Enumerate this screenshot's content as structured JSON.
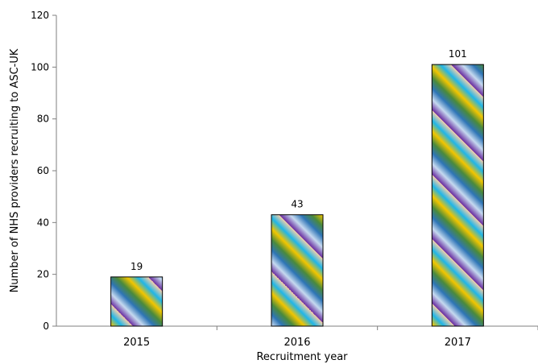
{
  "chart_data": {
    "type": "bar",
    "title": "",
    "xlabel": "Recruitment year",
    "ylabel": "Number of NHS providers recruiting to ASC-UK",
    "categories": [
      "2015",
      "2016",
      "2017"
    ],
    "values": [
      19,
      43,
      101
    ],
    "data_labels": [
      "19",
      "43",
      "101"
    ],
    "ylim": [
      0,
      120
    ],
    "yticks": [
      0,
      20,
      40,
      60,
      80,
      100,
      120
    ],
    "grid": false,
    "legend": "none",
    "bar_gradient_colors": [
      "#6a2ea0",
      "#c5d9ef",
      "#2e75b6",
      "#4a8a3c",
      "#f2c500",
      "#1fb5e8",
      "#f7cfa8"
    ],
    "axis_color": "#7f7f7f",
    "bar_border_color": "#000000"
  }
}
